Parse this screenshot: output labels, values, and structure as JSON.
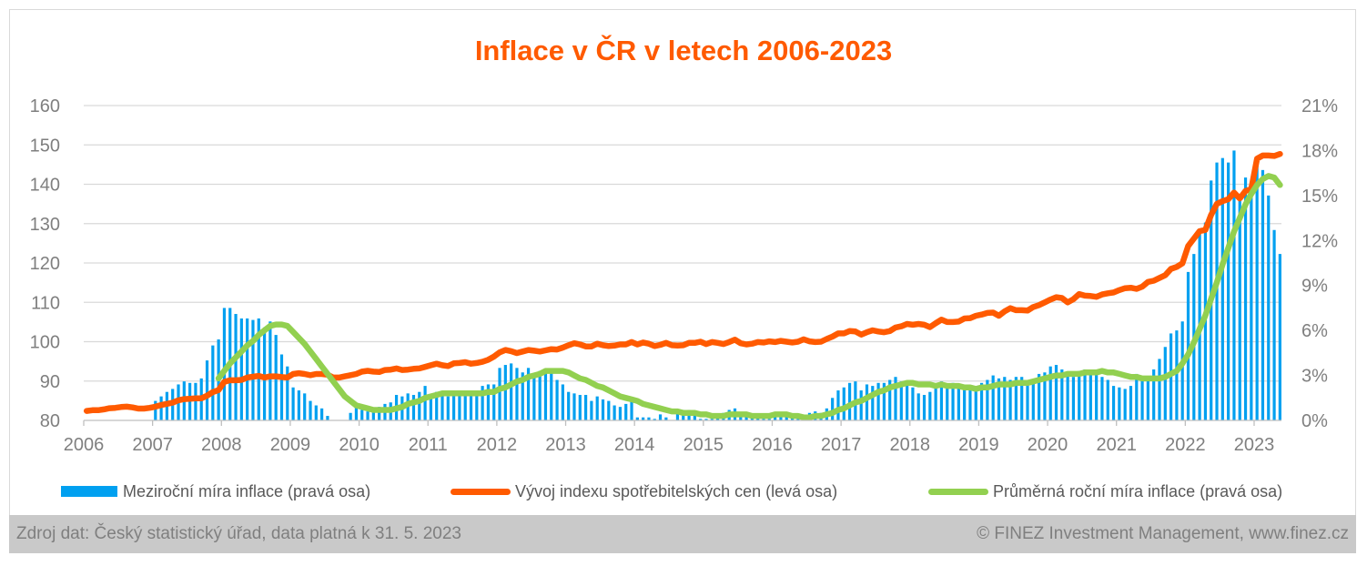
{
  "chart_data": {
    "type": "bar+line",
    "title": "Inflace v ČR v letech 2006-2023",
    "x_tick_labels": [
      "2006",
      "2007",
      "2008",
      "2009",
      "2010",
      "2011",
      "2012",
      "2013",
      "2014",
      "2015",
      "2016",
      "2017",
      "2018",
      "2019",
      "2020",
      "2021",
      "2022",
      "2023"
    ],
    "y_left": {
      "ticks": [
        "80",
        "90",
        "100",
        "110",
        "120",
        "130",
        "140",
        "150",
        "160"
      ],
      "range": [
        80,
        160
      ]
    },
    "y_right": {
      "ticks": [
        "0%",
        "3%",
        "6%",
        "9%",
        "12%",
        "15%",
        "18%",
        "21%"
      ],
      "range": [
        0,
        21
      ],
      "unit": "%"
    },
    "grid": true,
    "legend_position": "bottom",
    "frequency": "monthly",
    "series": [
      {
        "name": "Meziroční míra inflace (pravá osa)",
        "type": "bar",
        "axis": "right",
        "color": "#00A0F0",
        "start": "2007-01",
        "values": [
          1.3,
          1.6,
          1.9,
          2.1,
          2.4,
          2.6,
          2.5,
          2.5,
          2.8,
          4.0,
          5.0,
          5.4,
          7.5,
          7.5,
          7.1,
          6.8,
          6.8,
          6.7,
          6.8,
          6.2,
          6.6,
          5.7,
          4.4,
          3.6,
          2.2,
          2.0,
          1.8,
          1.3,
          1.0,
          0.8,
          0.3,
          0.0,
          -0.3,
          0.0,
          0.5,
          1.0,
          0.7,
          0.6,
          0.7,
          0.9,
          1.1,
          1.2,
          1.7,
          1.6,
          1.8,
          1.7,
          1.9,
          2.3,
          1.7,
          1.9,
          1.7,
          1.6,
          1.8,
          1.8,
          1.7,
          1.7,
          1.8,
          2.3,
          2.4,
          2.4,
          3.5,
          3.7,
          3.8,
          3.5,
          3.2,
          3.5,
          3.1,
          3.3,
          3.4,
          3.4,
          2.7,
          2.4,
          1.9,
          1.8,
          1.7,
          1.7,
          1.3,
          1.6,
          1.4,
          1.3,
          1.0,
          0.9,
          1.1,
          1.4,
          0.2,
          0.2,
          0.2,
          0.1,
          0.4,
          0.2,
          0.0,
          0.6,
          0.7,
          0.7,
          0.6,
          0.1,
          0.1,
          0.1,
          0.2,
          0.5,
          0.7,
          0.8,
          0.5,
          0.3,
          0.4,
          0.2,
          0.1,
          0.1,
          0.5,
          0.3,
          0.3,
          0.4,
          0.1,
          0.1,
          0.5,
          0.6,
          0.5,
          0.8,
          1.5,
          2.0,
          2.2,
          2.5,
          2.6,
          2.0,
          2.4,
          2.3,
          2.5,
          2.5,
          2.7,
          2.9,
          2.6,
          2.4,
          2.2,
          1.8,
          1.7,
          1.9,
          2.2,
          2.6,
          2.3,
          2.5,
          2.3,
          2.2,
          2.0,
          2.0,
          2.5,
          2.7,
          3.0,
          2.8,
          2.9,
          2.7,
          2.9,
          2.9,
          2.7,
          2.7,
          3.1,
          3.2,
          3.6,
          3.7,
          3.4,
          3.2,
          2.9,
          3.3,
          3.4,
          3.3,
          3.2,
          2.9,
          2.7,
          2.3,
          2.2,
          2.1,
          2.3,
          3.1,
          2.9,
          2.8,
          3.4,
          4.1,
          4.9,
          5.8,
          6.0,
          6.6,
          9.9,
          11.1,
          12.7,
          13.2,
          16.0,
          17.2,
          17.5,
          17.2,
          18.0,
          15.1,
          16.2,
          15.8,
          17.5,
          16.7,
          15.0,
          12.7,
          11.1
        ]
      },
      {
        "name": "Vývoj indexu spotřebitelských cen (levá osa)",
        "type": "line",
        "axis": "left",
        "color": "#FF5A00",
        "start": "2006-01",
        "values": [
          82.4,
          82.6,
          82.6,
          82.8,
          83.1,
          83.2,
          83.4,
          83.5,
          83.3,
          83.0,
          83.0,
          83.2,
          83.5,
          83.9,
          84.2,
          84.5,
          85.1,
          85.4,
          85.5,
          85.6,
          85.6,
          86.3,
          87.2,
          87.7,
          89.8,
          90.2,
          90.2,
          90.3,
          90.9,
          91.1,
          91.3,
          90.9,
          91.2,
          91.2,
          91.0,
          90.9,
          91.8,
          92.0,
          91.8,
          91.5,
          91.8,
          91.8,
          91.6,
          90.9,
          90.9,
          91.2,
          91.5,
          91.8,
          92.4,
          92.6,
          92.4,
          92.3,
          92.8,
          92.9,
          93.2,
          92.8,
          92.9,
          93.1,
          93.2,
          93.6,
          94.0,
          94.4,
          94.0,
          93.8,
          94.5,
          94.6,
          94.8,
          94.4,
          94.6,
          94.9,
          95.4,
          96.2,
          97.3,
          97.9,
          97.6,
          97.1,
          97.5,
          97.9,
          97.7,
          97.5,
          97.8,
          98.1,
          98.0,
          98.5,
          99.1,
          99.6,
          99.3,
          98.8,
          98.8,
          99.5,
          99.1,
          98.9,
          99.0,
          99.3,
          99.3,
          99.9,
          99.3,
          99.8,
          99.5,
          98.9,
          99.2,
          99.7,
          99.1,
          99.0,
          99.1,
          99.7,
          99.7,
          100.0,
          99.4,
          99.9,
          99.7,
          99.4,
          99.9,
          100.5,
          99.6,
          99.3,
          99.5,
          99.9,
          99.8,
          100.1,
          99.9,
          100.2,
          100.0,
          99.8,
          100.0,
          100.6,
          100.1,
          99.9,
          100.0,
          100.7,
          101.3,
          102.1,
          102.1,
          102.7,
          102.6,
          101.8,
          102.4,
          102.9,
          102.6,
          102.4,
          102.7,
          103.6,
          103.9,
          104.5,
          104.3,
          104.5,
          104.3,
          103.7,
          104.7,
          105.6,
          105.0,
          105.0,
          105.1,
          105.9,
          106.0,
          106.6,
          106.9,
          107.3,
          107.4,
          106.6,
          107.7,
          108.5,
          108.0,
          108.0,
          107.9,
          108.8,
          109.3,
          110.0,
          110.7,
          111.3,
          111.1,
          110.0,
          110.8,
          112.1,
          111.7,
          111.6,
          111.4,
          112.0,
          112.3,
          112.5,
          113.1,
          113.6,
          113.7,
          113.4,
          114.0,
          115.2,
          115.5,
          116.2,
          116.9,
          118.5,
          119.0,
          119.9,
          124.3,
          126.2,
          128.1,
          128.4,
          132.2,
          135.0,
          135.7,
          136.2,
          137.9,
          136.4,
          138.3,
          138.8,
          146.5,
          147.3,
          147.3,
          147.2,
          147.7
        ]
      },
      {
        "name": "Průměrná roční míra inflace (pravá osa)",
        "type": "line",
        "axis": "right",
        "color": "#92D050",
        "start": "2007-12",
        "values": [
          2.8,
          3.3,
          3.8,
          4.2,
          4.6,
          5.0,
          5.3,
          5.7,
          6.0,
          6.3,
          6.4,
          6.4,
          6.3,
          5.9,
          5.5,
          5.1,
          4.6,
          4.1,
          3.6,
          3.1,
          2.6,
          2.1,
          1.6,
          1.3,
          1.0,
          0.9,
          0.8,
          0.7,
          0.7,
          0.7,
          0.7,
          0.8,
          0.9,
          1.1,
          1.2,
          1.3,
          1.5,
          1.6,
          1.7,
          1.8,
          1.8,
          1.8,
          1.8,
          1.8,
          1.8,
          1.8,
          1.8,
          1.9,
          1.9,
          2.1,
          2.2,
          2.4,
          2.6,
          2.7,
          2.9,
          3.0,
          3.1,
          3.3,
          3.3,
          3.3,
          3.3,
          3.2,
          3.0,
          2.8,
          2.7,
          2.5,
          2.3,
          2.2,
          2.0,
          1.8,
          1.6,
          1.5,
          1.4,
          1.3,
          1.1,
          1.0,
          0.9,
          0.8,
          0.7,
          0.6,
          0.6,
          0.5,
          0.5,
          0.5,
          0.4,
          0.4,
          0.3,
          0.3,
          0.3,
          0.4,
          0.4,
          0.4,
          0.4,
          0.3,
          0.3,
          0.3,
          0.3,
          0.4,
          0.4,
          0.4,
          0.3,
          0.3,
          0.2,
          0.2,
          0.3,
          0.3,
          0.4,
          0.5,
          0.7,
          0.8,
          1.0,
          1.2,
          1.3,
          1.5,
          1.7,
          1.9,
          2.0,
          2.2,
          2.3,
          2.4,
          2.5,
          2.5,
          2.4,
          2.4,
          2.4,
          2.3,
          2.4,
          2.3,
          2.3,
          2.3,
          2.2,
          2.2,
          2.1,
          2.2,
          2.2,
          2.3,
          2.4,
          2.4,
          2.4,
          2.5,
          2.5,
          2.5,
          2.6,
          2.7,
          2.8,
          2.9,
          3.0,
          3.0,
          3.1,
          3.1,
          3.1,
          3.2,
          3.2,
          3.2,
          3.3,
          3.2,
          3.2,
          3.1,
          3.0,
          2.9,
          2.9,
          2.8,
          2.8,
          2.8,
          2.8,
          2.9,
          3.1,
          3.3,
          3.8,
          4.4,
          5.2,
          6.1,
          7.0,
          8.1,
          9.2,
          10.4,
          11.5,
          12.6,
          13.5,
          14.4,
          15.1,
          15.7,
          16.1,
          16.3,
          16.2,
          15.7
        ]
      }
    ]
  },
  "legend": {
    "bars": "Meziroční míra inflace (pravá osa)",
    "cpi": "Vývoj indexu spotřebitelských cen (levá osa)",
    "avg": "Průměrná roční míra inflace (pravá osa)"
  },
  "footer": {
    "source": "Zdroj dat: Český statistický úřad, data platná k 31. 5. 2023",
    "copyright": "© FINEZ Investment Management, www.finez.cz"
  }
}
